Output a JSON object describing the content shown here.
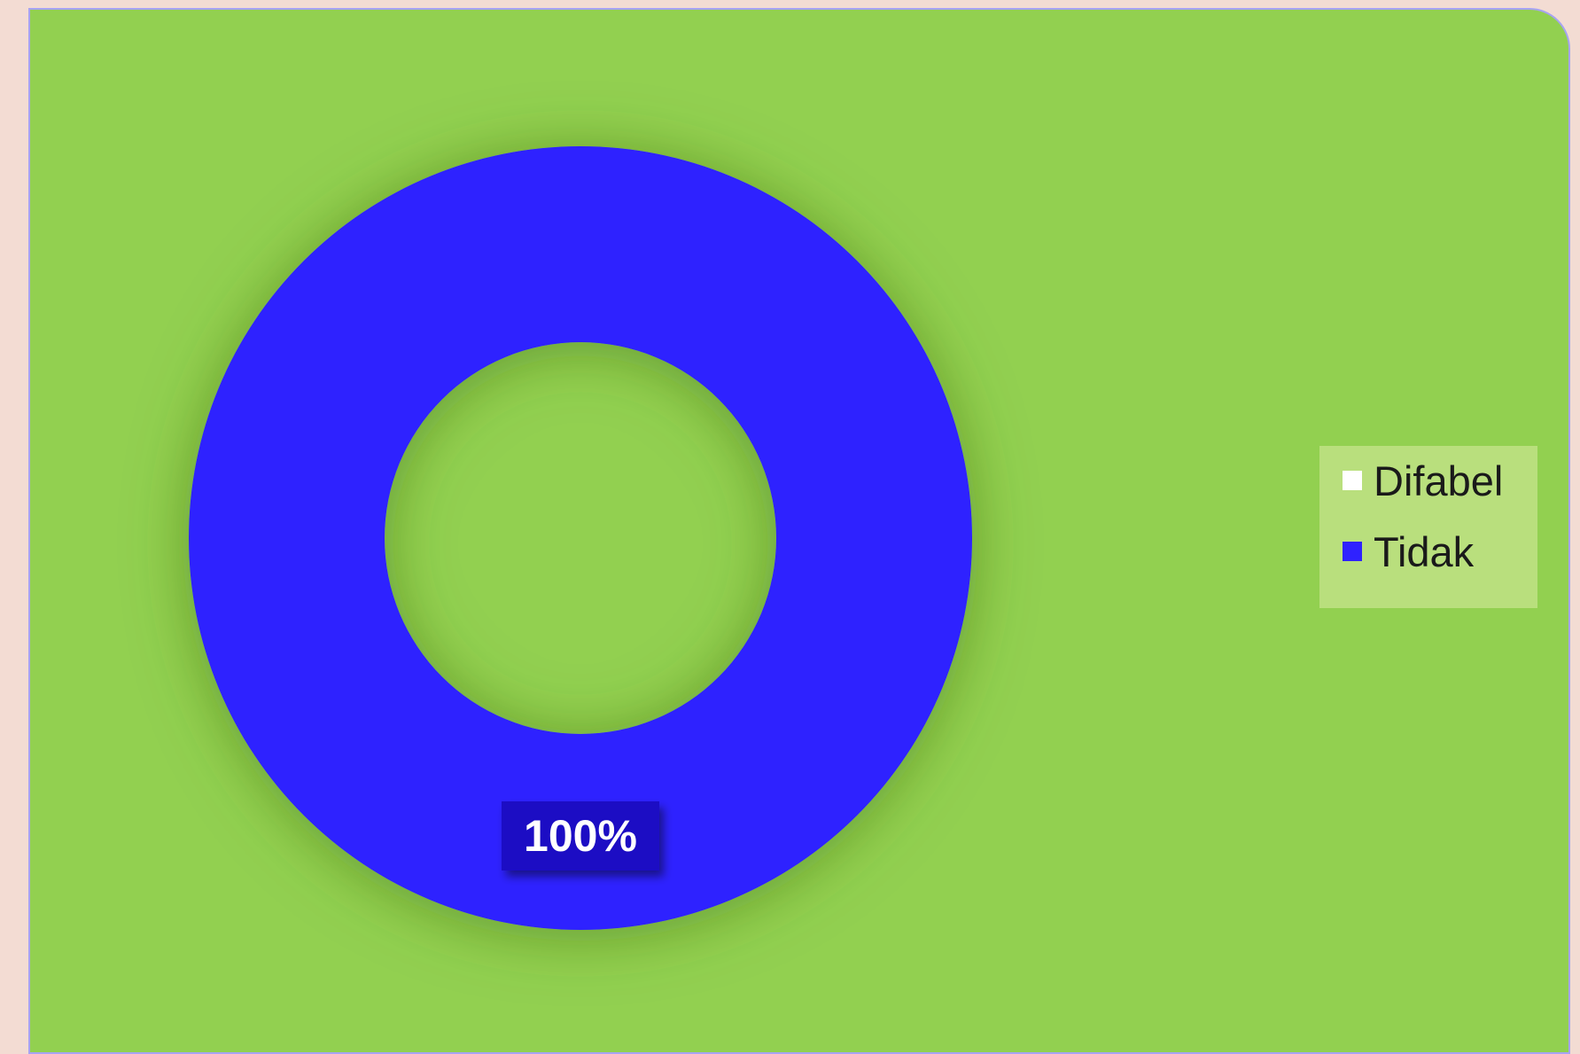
{
  "chart_data": {
    "type": "pie",
    "variant": "donut",
    "categories": [
      "Difabel",
      "Tidak"
    ],
    "values": [
      0,
      100
    ],
    "data_labels": [
      "",
      "100%"
    ],
    "colors": [
      "#ffffff",
      "#2f22ff"
    ],
    "label_box_color": "#1a07c4",
    "background_color": "#92d050",
    "legend": {
      "placement": "right",
      "background": "#b9df7d",
      "entries": [
        {
          "label": "Difabel",
          "color": "#ffffff"
        },
        {
          "label": "Tidak",
          "color": "#2f22ff"
        }
      ]
    },
    "title": ""
  }
}
